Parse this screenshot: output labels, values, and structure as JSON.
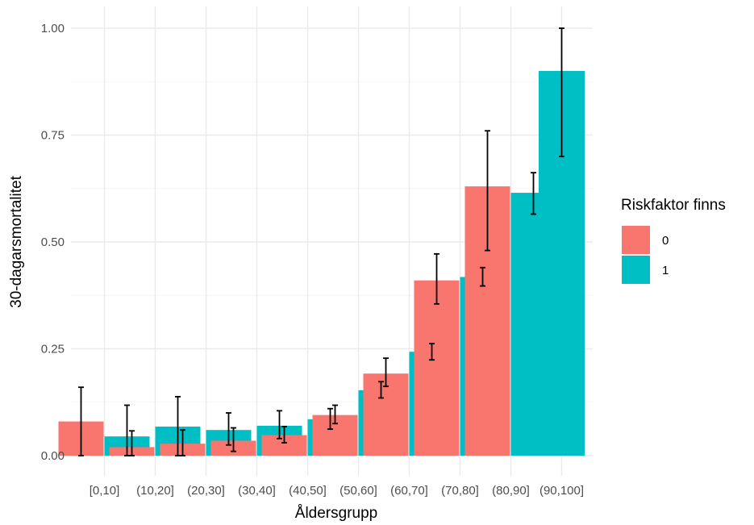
{
  "chart_data": {
    "type": "bar",
    "xlabel": "Åldersgrupp",
    "ylabel": "30-dagarsmortalitet",
    "ylim": [
      0,
      1.0
    ],
    "yticks": [
      0,
      0.25,
      0.5,
      0.75,
      1.0
    ],
    "ytick_labels": [
      "0.00",
      "0.25",
      "0.50",
      "0.75",
      "1.00"
    ],
    "grid": true,
    "legend": {
      "title": "Riskfaktor finns",
      "placement": "right"
    },
    "categories": [
      "[0,10]",
      "(10,20]",
      "(20,30]",
      "(30,40]",
      "(40,50]",
      "(50,60]",
      "(60,70]",
      "(70,80]",
      "(80,90]",
      "(90,100]"
    ],
    "series": [
      {
        "name": "0",
        "color": "#F8766D",
        "values": [
          0.08,
          0.02,
          0.028,
          0.035,
          0.048,
          0.095,
          0.192,
          0.41,
          0.63,
          null
        ],
        "err_low": [
          0.0,
          0.0,
          0.0,
          0.01,
          0.03,
          0.075,
          0.162,
          0.355,
          0.48,
          null
        ],
        "err_high": [
          0.16,
          0.058,
          0.06,
          0.065,
          0.068,
          0.118,
          0.228,
          0.472,
          0.76,
          null
        ]
      },
      {
        "name": "1",
        "color": "#00BFC4",
        "values": [
          0.045,
          0.068,
          0.06,
          0.07,
          0.085,
          0.153,
          0.243,
          0.418,
          0.615,
          0.9
        ],
        "err_low": [
          0.0,
          0.0,
          0.025,
          0.04,
          0.062,
          0.135,
          0.224,
          0.397,
          0.565,
          0.7
        ],
        "err_high": [
          0.118,
          0.138,
          0.1,
          0.105,
          0.11,
          0.173,
          0.262,
          0.44,
          0.662,
          1.0
        ]
      }
    ]
  }
}
